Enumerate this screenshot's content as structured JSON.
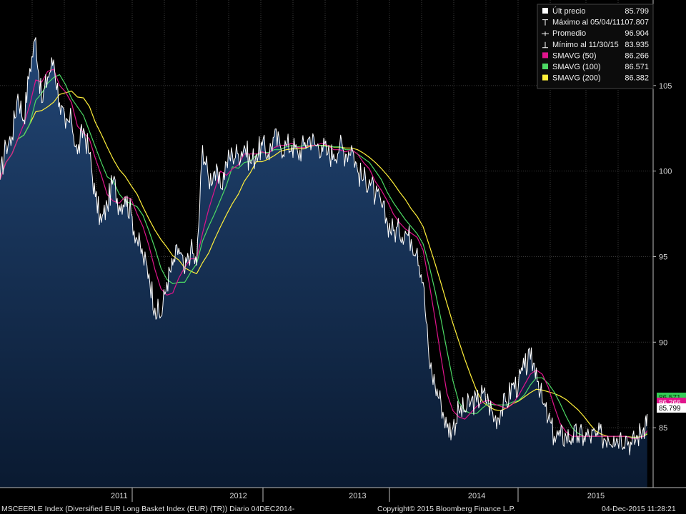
{
  "footer": {
    "left": "MSCEERLE Index (Diversified EUR Long Basket Index (EUR) (TR))  Diario 04DEC2014-",
    "center": "Copyright© 2015 Bloomberg Finance L.P.",
    "right": "04-Dec-2015 11:28:21"
  },
  "legend": {
    "items": [
      {
        "label": "Últ precio",
        "value": "85.799",
        "marker": "square",
        "color": "#ffffff"
      },
      {
        "label": "Máximo al 05/04/11",
        "value": "107.807",
        "marker": "high",
        "color": "#ffffff"
      },
      {
        "label": "Promedio",
        "value": "96.904",
        "marker": "avg",
        "color": "#ffffff"
      },
      {
        "label": "Mínimo al 11/30/15",
        "value": "83.935",
        "marker": "low",
        "color": "#ffffff"
      },
      {
        "label": "SMAVG (50)",
        "value": "86.266",
        "marker": "square",
        "color": "#e0148c"
      },
      {
        "label": "SMAVG (100)",
        "value": "86.571",
        "marker": "square",
        "color": "#4cd964"
      },
      {
        "label": "SMAVG (200)",
        "value": "86.382",
        "marker": "square",
        "color": "#ffef3a"
      }
    ]
  },
  "right_tags": [
    {
      "value": "86.571",
      "bg": "#33cc55",
      "fg": "#003300"
    },
    {
      "value": "86.266",
      "bg": "#e0148c",
      "fg": "#ffffff"
    },
    {
      "value": "85.799",
      "bg": "#ffffff",
      "fg": "#000000"
    }
  ],
  "colors": {
    "price": "#ffffff",
    "fill_top": "#1f3f66",
    "fill_bottom": "#0b1d36",
    "sma50": "#e0148c",
    "sma100": "#4cd964",
    "sma200": "#ffef3a",
    "grid": "#3a3a3a",
    "background": "#000000"
  },
  "chart_data": {
    "type": "line",
    "title": "",
    "xlabel": "",
    "ylabel": "",
    "ylim": [
      81.5,
      110
    ],
    "xlim": [
      2010.5,
      2015.98
    ],
    "y_ticks": [
      85,
      90,
      95,
      100,
      105
    ],
    "x_tick_labels": [
      {
        "label": "2011",
        "x": 2011.0
      },
      {
        "label": "2012",
        "x": 2012.0
      },
      {
        "label": "2013",
        "x": 2013.0
      },
      {
        "label": "2014",
        "x": 2014.0
      },
      {
        "label": "2015",
        "x": 2015.0
      }
    ],
    "grid": true,
    "legend_position": "top-right",
    "series": [
      {
        "name": "Últ precio",
        "x": [
          2010.5,
          2010.55,
          2010.6,
          2010.65,
          2010.7,
          2010.75,
          2010.8,
          2010.85,
          2010.9,
          2010.95,
          2011.0,
          2011.05,
          2011.1,
          2011.15,
          2011.2,
          2011.25,
          2011.3,
          2011.35,
          2011.4,
          2011.45,
          2011.5,
          2011.55,
          2011.6,
          2011.65,
          2011.7,
          2011.75,
          2011.8,
          2011.85,
          2011.9,
          2011.95,
          2012.0,
          2012.05,
          2012.1,
          2012.15,
          2012.2,
          2012.25,
          2012.3,
          2012.35,
          2012.4,
          2012.45,
          2012.5,
          2012.55,
          2012.6,
          2012.65,
          2012.7,
          2012.75,
          2012.8,
          2012.85,
          2012.9,
          2012.95,
          2013.0,
          2013.05,
          2013.1,
          2013.15,
          2013.2,
          2013.25,
          2013.3,
          2013.35,
          2013.4,
          2013.45,
          2013.5,
          2013.55,
          2013.6,
          2013.65,
          2013.7,
          2013.75,
          2013.8,
          2013.85,
          2013.9,
          2013.95,
          2014.0,
          2014.05,
          2014.1,
          2014.15,
          2014.2,
          2014.25,
          2014.3,
          2014.35,
          2014.4,
          2014.45,
          2014.5,
          2014.55,
          2014.6,
          2014.65,
          2014.7,
          2014.75,
          2014.8,
          2014.85,
          2014.9,
          2014.95,
          2015.0,
          2015.05,
          2015.1,
          2015.15,
          2015.2,
          2015.25,
          2015.3,
          2015.35,
          2015.4,
          2015.45,
          2015.5,
          2015.55,
          2015.6,
          2015.65,
          2015.7,
          2015.75,
          2015.8,
          2015.85,
          2015.9,
          2015.93
        ],
        "values": [
          99.5,
          101.5,
          102.0,
          104.5,
          103.0,
          106.0,
          107.8,
          104.0,
          105.5,
          106.5,
          104.0,
          102.5,
          103.0,
          101.0,
          102.5,
          101.0,
          98.5,
          97.0,
          98.0,
          99.5,
          98.0,
          98.5,
          97.5,
          96.0,
          95.0,
          94.0,
          92.0,
          91.5,
          93.5,
          94.5,
          95.5,
          94.0,
          95.5,
          94.5,
          101.5,
          99.5,
          100.0,
          99.0,
          100.5,
          101.0,
          101.0,
          101.5,
          100.5,
          101.0,
          101.5,
          101.0,
          102.0,
          101.5,
          101.5,
          101.5,
          101.0,
          101.5,
          102.0,
          101.5,
          101.5,
          101.0,
          101.0,
          101.5,
          101.0,
          101.5,
          100.0,
          99.5,
          99.5,
          98.5,
          98.0,
          97.0,
          96.5,
          96.5,
          96.5,
          96.0,
          95.5,
          93.5,
          89.0,
          87.5,
          86.5,
          85.0,
          85.0,
          86.0,
          86.0,
          86.5,
          86.5,
          87.0,
          86.5,
          85.5,
          86.0,
          86.5,
          87.5,
          87.5,
          88.5,
          89.0,
          88.5,
          86.5,
          85.5,
          84.5,
          84.5,
          84.5,
          84.5,
          84.5,
          84.5,
          84.5,
          84.5,
          84.5,
          84.5,
          84.5,
          84.5,
          84.5,
          84.0,
          84.5,
          85.0,
          85.799
        ]
      }
    ]
  }
}
